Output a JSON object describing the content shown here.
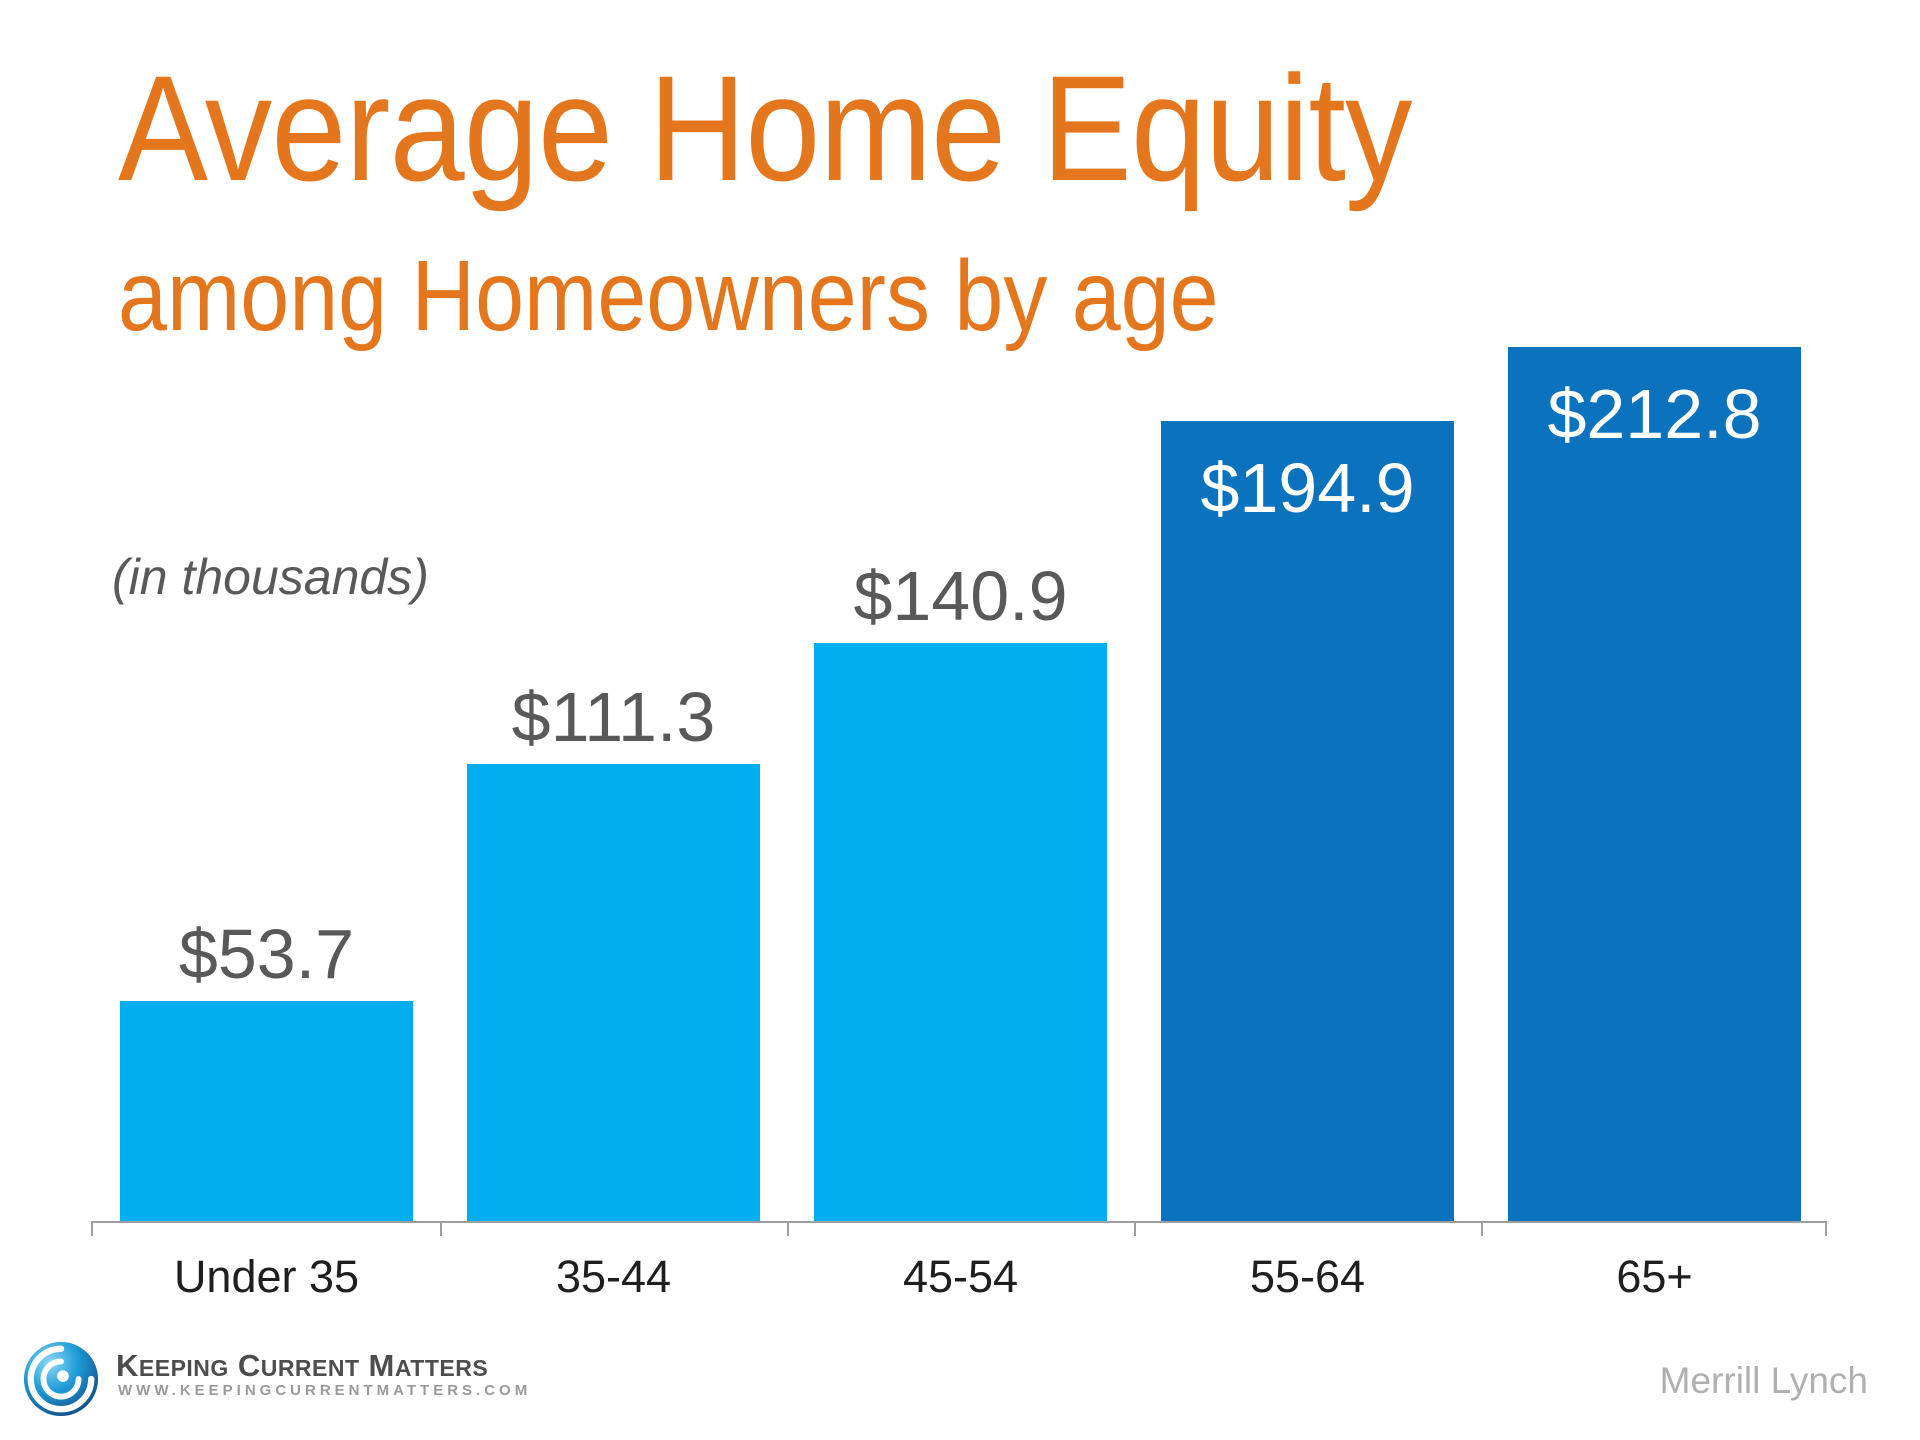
{
  "title": "Average Home Equity",
  "subtitle": "among Homeowners by age",
  "unit_note": "(in thousands)",
  "source": "Merrill Lynch",
  "footer": {
    "brand": "Keeping Current Matters",
    "brand_words": [
      {
        "initial": "K",
        "rest": "EEPING"
      },
      {
        "initial": "C",
        "rest": "URRENT"
      },
      {
        "initial": "M",
        "rest": "ATTERS"
      }
    ],
    "url": "WWW.KEEPINGCURRENTMATTERS.COM"
  },
  "colors": {
    "title_orange": "#E4771E",
    "light_blue_bar": "#00AEEF",
    "dark_blue_bar": "#0B72BD",
    "gray_label": "#595959",
    "white_label": "#FFFFFF",
    "category_label": "#1F1F1F",
    "axis_gray": "#9E9E9E",
    "source_gray": "#B0B0B0"
  },
  "chart_data": {
    "type": "bar",
    "title": "Average Home Equity among Homeowners by age",
    "unit": "thousands of dollars",
    "categories": [
      "Under 35",
      "35-44",
      "45-54",
      "55-64",
      "65+"
    ],
    "values": [
      53.7,
      111.3,
      140.9,
      194.9,
      212.8
    ],
    "value_labels": [
      "$53.7",
      "$111.3",
      "$140.9",
      "$194.9",
      "$212.8"
    ],
    "bar_colors": [
      "#00AEEF",
      "#00AEEF",
      "#00AEEF",
      "#0B72BD",
      "#0B72BD"
    ],
    "label_inside": [
      false,
      false,
      false,
      true,
      true
    ],
    "label_colors": [
      "#595959",
      "#595959",
      "#595959",
      "#FFFFFF",
      "#FFFFFF"
    ],
    "xlabel": "",
    "ylabel": "(in thousands)",
    "ylim": [
      0,
      240
    ],
    "grid": false,
    "legend": false,
    "source": "Merrill Lynch"
  }
}
